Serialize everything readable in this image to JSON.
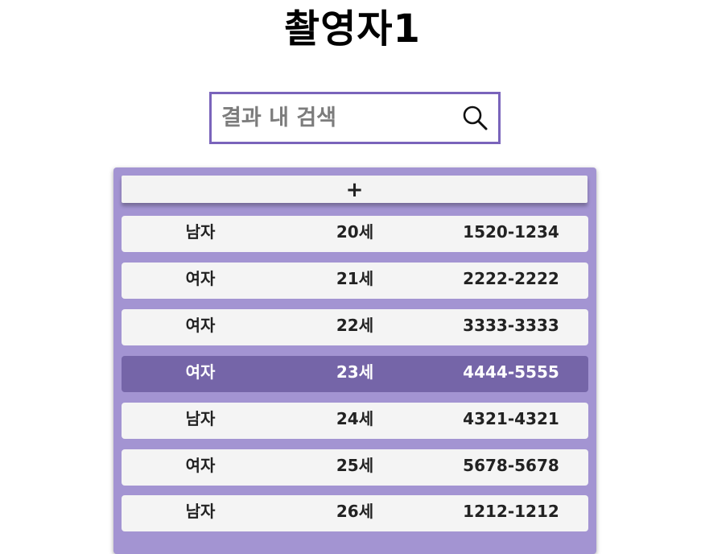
{
  "page": {
    "title": "촬영자1"
  },
  "search": {
    "placeholder": "결과 내 검색",
    "value": "",
    "icon": "search-icon"
  },
  "list": {
    "add_label": "+",
    "rows": [
      {
        "gender": "남자",
        "age": "20세",
        "phone": "1520-1234",
        "selected": false
      },
      {
        "gender": "여자",
        "age": "21세",
        "phone": "2222-2222",
        "selected": false
      },
      {
        "gender": "여자",
        "age": "22세",
        "phone": "3333-3333",
        "selected": false
      },
      {
        "gender": "여자",
        "age": "23세",
        "phone": "4444-5555",
        "selected": true
      },
      {
        "gender": "남자",
        "age": "24세",
        "phone": "4321-4321",
        "selected": false
      },
      {
        "gender": "여자",
        "age": "25세",
        "phone": "5678-5678",
        "selected": false
      },
      {
        "gender": "남자",
        "age": "26세",
        "phone": "1212-1212",
        "selected": false
      }
    ]
  },
  "colors": {
    "accent": "#7a64bb",
    "panel": "#a394d2",
    "row": "#f4f4f4",
    "row_selected": "#7565a8"
  }
}
